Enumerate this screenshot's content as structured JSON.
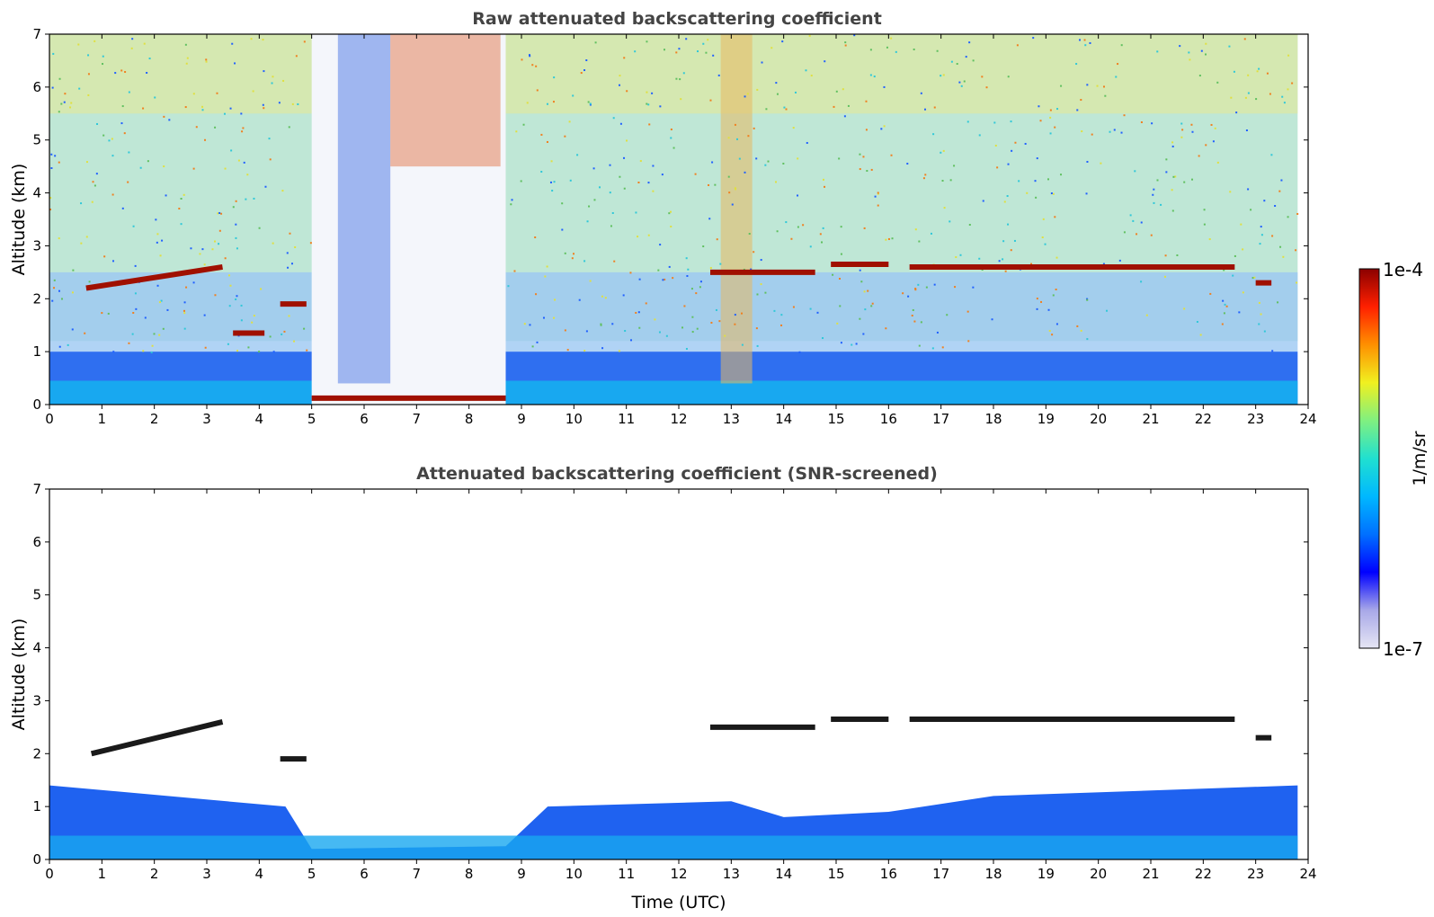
{
  "chart_data": [
    {
      "type": "heatmap",
      "title": "Raw attenuated backscattering coefficient",
      "xlabel": "",
      "ylabel": "Altitude (km)",
      "xlim": [
        0,
        24
      ],
      "ylim": [
        0,
        7
      ],
      "xticks": [
        0,
        1,
        2,
        3,
        4,
        5,
        6,
        7,
        8,
        9,
        10,
        11,
        12,
        13,
        14,
        15,
        16,
        17,
        18,
        19,
        20,
        21,
        22,
        23,
        24
      ],
      "yticks": [
        0,
        1,
        2,
        3,
        4,
        5,
        6,
        7
      ],
      "data_end_time": 23.8,
      "features": {
        "clear_sky_low_signal_window": [
          5.0,
          8.7
        ],
        "high_noise_windows": [
          [
            5.5,
            6.5
          ],
          [
            12.8,
            13.4
          ]
        ],
        "cloud_layers": [
          {
            "t_start": 0.7,
            "t_end": 3.3,
            "alt_start": 2.2,
            "alt_end": 2.6
          },
          {
            "t_start": 4.4,
            "t_end": 4.9,
            "alt": 1.9
          },
          {
            "t_start": 3.5,
            "t_end": 4.1,
            "alt": 1.35
          },
          {
            "t_start": 5.0,
            "t_end": 8.7,
            "alt": 0.12
          },
          {
            "t_start": 12.6,
            "t_end": 14.6,
            "alt": 2.5
          },
          {
            "t_start": 14.9,
            "t_end": 16.0,
            "alt": 2.65
          },
          {
            "t_start": 16.4,
            "t_end": 22.6,
            "alt": 2.6
          },
          {
            "t_start": 23.0,
            "t_end": 23.3,
            "alt": 2.3
          }
        ]
      }
    },
    {
      "type": "heatmap",
      "title": "Attenuated backscattering coefficient (SNR-screened)",
      "xlabel": "Time (UTC)",
      "ylabel": "Altitude (km)",
      "xlim": [
        0,
        24
      ],
      "ylim": [
        0,
        7
      ],
      "xticks": [
        0,
        1,
        2,
        3,
        4,
        5,
        6,
        7,
        8,
        9,
        10,
        11,
        12,
        13,
        14,
        15,
        16,
        17,
        18,
        19,
        20,
        21,
        22,
        23,
        24
      ],
      "yticks": [
        0,
        1,
        2,
        3,
        4,
        5,
        6,
        7
      ],
      "data_end_time": 23.8,
      "features": {
        "boundary_layer_top_km": [
          [
            0,
            1.4
          ],
          [
            4.5,
            1.0
          ],
          [
            5.0,
            0.2
          ],
          [
            8.7,
            0.25
          ],
          [
            9.5,
            1.0
          ],
          [
            13.0,
            1.1
          ],
          [
            14.0,
            0.8
          ],
          [
            16.0,
            0.9
          ],
          [
            18.0,
            1.2
          ],
          [
            23.8,
            1.4
          ]
        ],
        "cloud_layers": [
          {
            "t_start": 0.8,
            "t_end": 3.3,
            "alt_start": 2.0,
            "alt_end": 2.6
          },
          {
            "t_start": 4.4,
            "t_end": 4.9,
            "alt": 1.9
          },
          {
            "t_start": 12.6,
            "t_end": 14.6,
            "alt": 2.5
          },
          {
            "t_start": 14.9,
            "t_end": 16.0,
            "alt": 2.65
          },
          {
            "t_start": 16.4,
            "t_end": 22.6,
            "alt": 2.65
          },
          {
            "t_start": 23.0,
            "t_end": 23.3,
            "alt": 2.3
          }
        ]
      }
    }
  ],
  "colorbar": {
    "label": "1/m/sr",
    "max_label": "1e-4",
    "min_label": "1e-7",
    "scale": "log",
    "colormap": "jet",
    "stops": [
      "#e6e6f4",
      "#a8a8e8",
      "#0000ff",
      "#0070ff",
      "#00b8ff",
      "#20e0d0",
      "#80f080",
      "#f0f020",
      "#ff9000",
      "#ff2000",
      "#8b0000"
    ]
  }
}
